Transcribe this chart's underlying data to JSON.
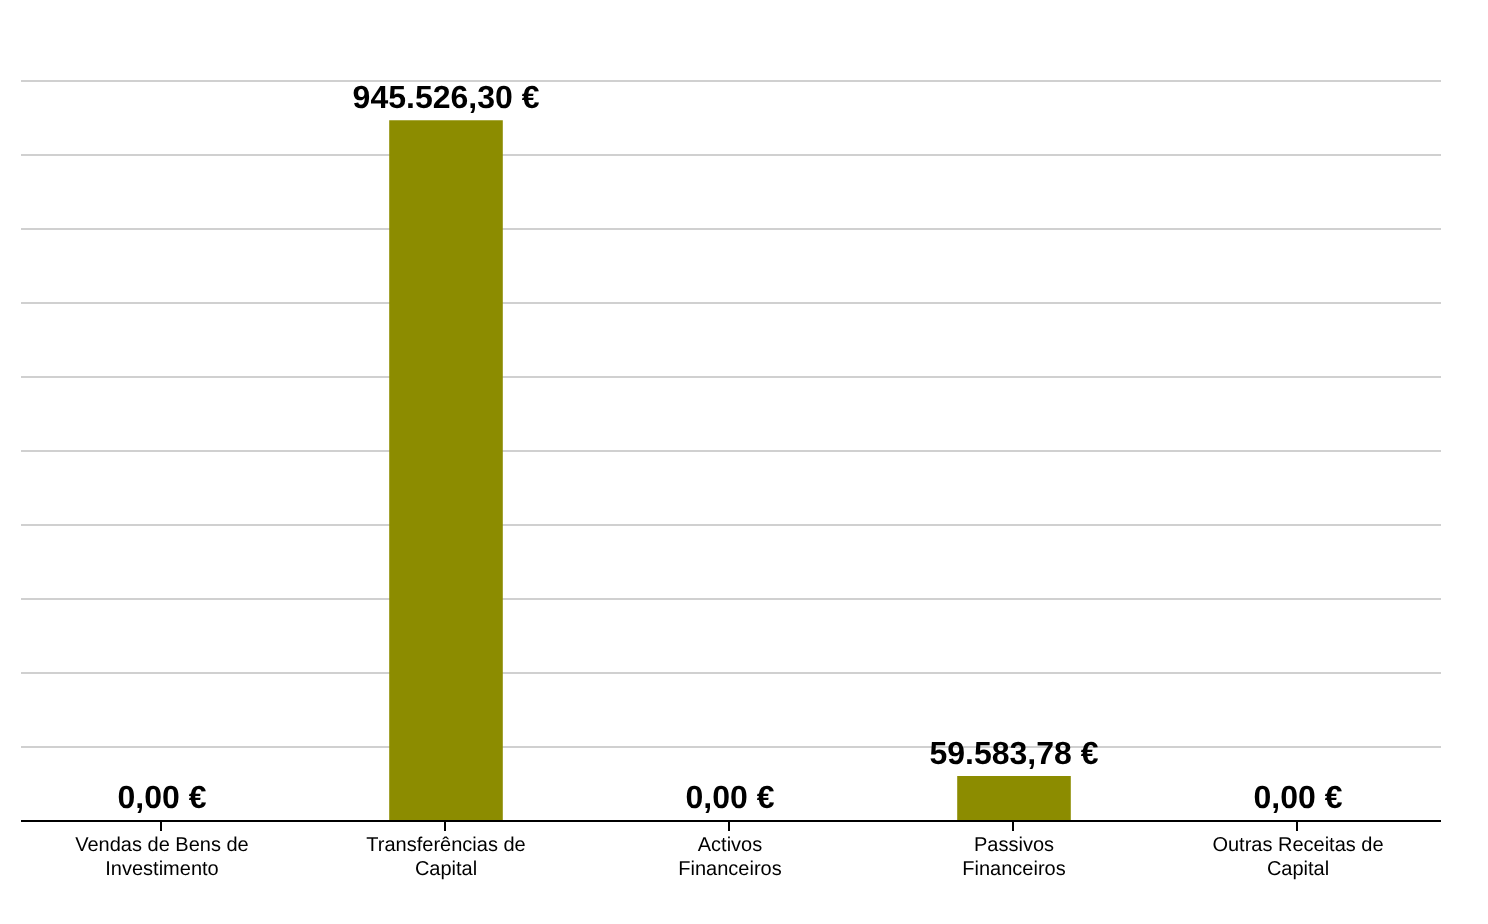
{
  "chart_data": {
    "type": "bar",
    "categories": [
      "Vendas de Bens de Investimento",
      "Transferências de Capital",
      "Activos Financeiros",
      "Passivos Financeiros",
      "Outras Receitas de Capital"
    ],
    "values": [
      0,
      945526.3,
      0,
      59583.78,
      0
    ],
    "value_labels": [
      "0,00 €",
      "945.526,30 €",
      "0,00 €",
      "59.583,78 €",
      "0,00 €"
    ],
    "color": "#8c8c00",
    "ylim": [
      0,
      1000000
    ],
    "grid": "y",
    "tick_labels": "x"
  }
}
